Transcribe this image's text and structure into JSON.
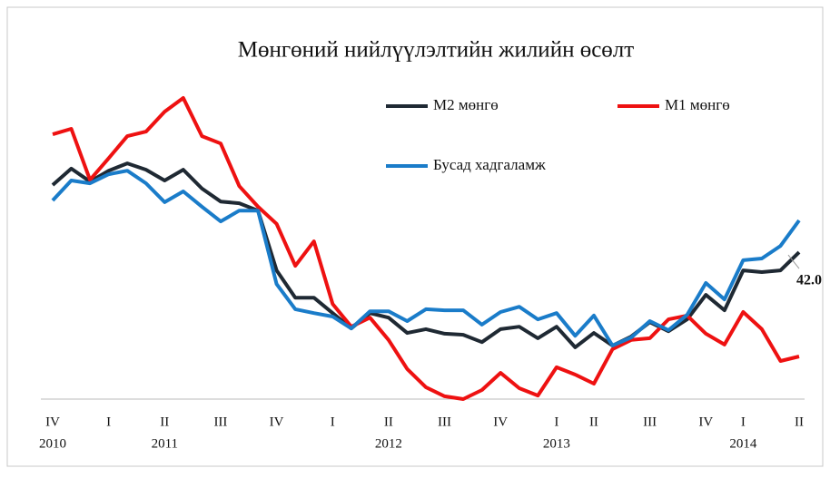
{
  "chart_data": {
    "type": "line",
    "title": "Мөнгөний  нийлүүлэлтийн жилийн өсөлт",
    "categories": [
      "IV",
      null,
      null,
      "I",
      null,
      null,
      "II",
      null,
      null,
      "III",
      null,
      null,
      "IV",
      null,
      null,
      "I",
      null,
      null,
      "II",
      null,
      null,
      "III",
      null,
      null,
      "IV",
      null,
      null,
      "I",
      null,
      "II",
      null,
      null,
      "III",
      null,
      null,
      "IV",
      null,
      "I",
      null,
      null,
      "II"
    ],
    "year_labels": [
      "2010",
      null,
      null,
      null,
      null,
      null,
      "2011",
      null,
      null,
      null,
      null,
      null,
      null,
      null,
      null,
      null,
      null,
      null,
      "2012",
      null,
      null,
      null,
      null,
      null,
      null,
      null,
      null,
      "2013",
      null,
      null,
      null,
      null,
      null,
      null,
      null,
      null,
      null,
      "2014",
      null,
      null,
      null
    ],
    "series": [
      {
        "name": "M2 мөнгө",
        "color": "#1f2933",
        "values": [
          61.2,
          65.9,
          62.2,
          65.3,
          67.4,
          65.6,
          62.5,
          65.6,
          60.2,
          56.5,
          56.0,
          53.9,
          36.8,
          29.0,
          29.0,
          24.6,
          20.2,
          24.6,
          23.3,
          18.9,
          20.0,
          18.7,
          18.4,
          16.3,
          20.0,
          20.7,
          17.4,
          20.7,
          14.8,
          18.9,
          15.3,
          17.9,
          22.0,
          19.4,
          22.8,
          29.8,
          25.4,
          36.8,
          36.3,
          36.8,
          42.0
        ],
        "value_labels": [
          null,
          null,
          null,
          null,
          null,
          null,
          null,
          null,
          null,
          null,
          null,
          null,
          null,
          null,
          null,
          null,
          null,
          null,
          null,
          null,
          null,
          null,
          null,
          null,
          null,
          null,
          null,
          null,
          null,
          null,
          null,
          null,
          null,
          null,
          null,
          null,
          null,
          null,
          null,
          null,
          "42.0"
        ]
      },
      {
        "name": "M1 мөнгө",
        "color": "#ee1111",
        "values": [
          75.7,
          77.3,
          62.7,
          68.9,
          75.2,
          76.5,
          82.2,
          86.1,
          75.2,
          73.1,
          60.9,
          55.0,
          50.1,
          38.1,
          45.1,
          27.2,
          20.7,
          23.3,
          16.9,
          8.6,
          3.4,
          0.8,
          0,
          2.6,
          7.5,
          3.1,
          1.0,
          9.1,
          7.0,
          4.4,
          14.3,
          16.9,
          17.4,
          22.8,
          23.9,
          18.7,
          15.6,
          24.9,
          20.0,
          10.9,
          12.2
        ]
      },
      {
        "name": "Бусад  хадгаламж",
        "color": "#1a7cc9",
        "values": [
          56.8,
          62.5,
          61.7,
          64.3,
          65.3,
          61.7,
          56.3,
          59.4,
          55.0,
          50.8,
          53.9,
          53.9,
          32.9,
          25.7,
          24.6,
          23.6,
          20.2,
          25.1,
          25.1,
          22.3,
          25.7,
          25.4,
          25.4,
          21.3,
          24.9,
          26.4,
          22.8,
          24.6,
          18.1,
          23.9,
          15.3,
          17.6,
          22.3,
          19.7,
          24.1,
          33.2,
          28.5,
          39.7,
          40.2,
          43.8,
          51.1
        ]
      }
    ],
    "ylim": [
      0,
      90
    ]
  }
}
